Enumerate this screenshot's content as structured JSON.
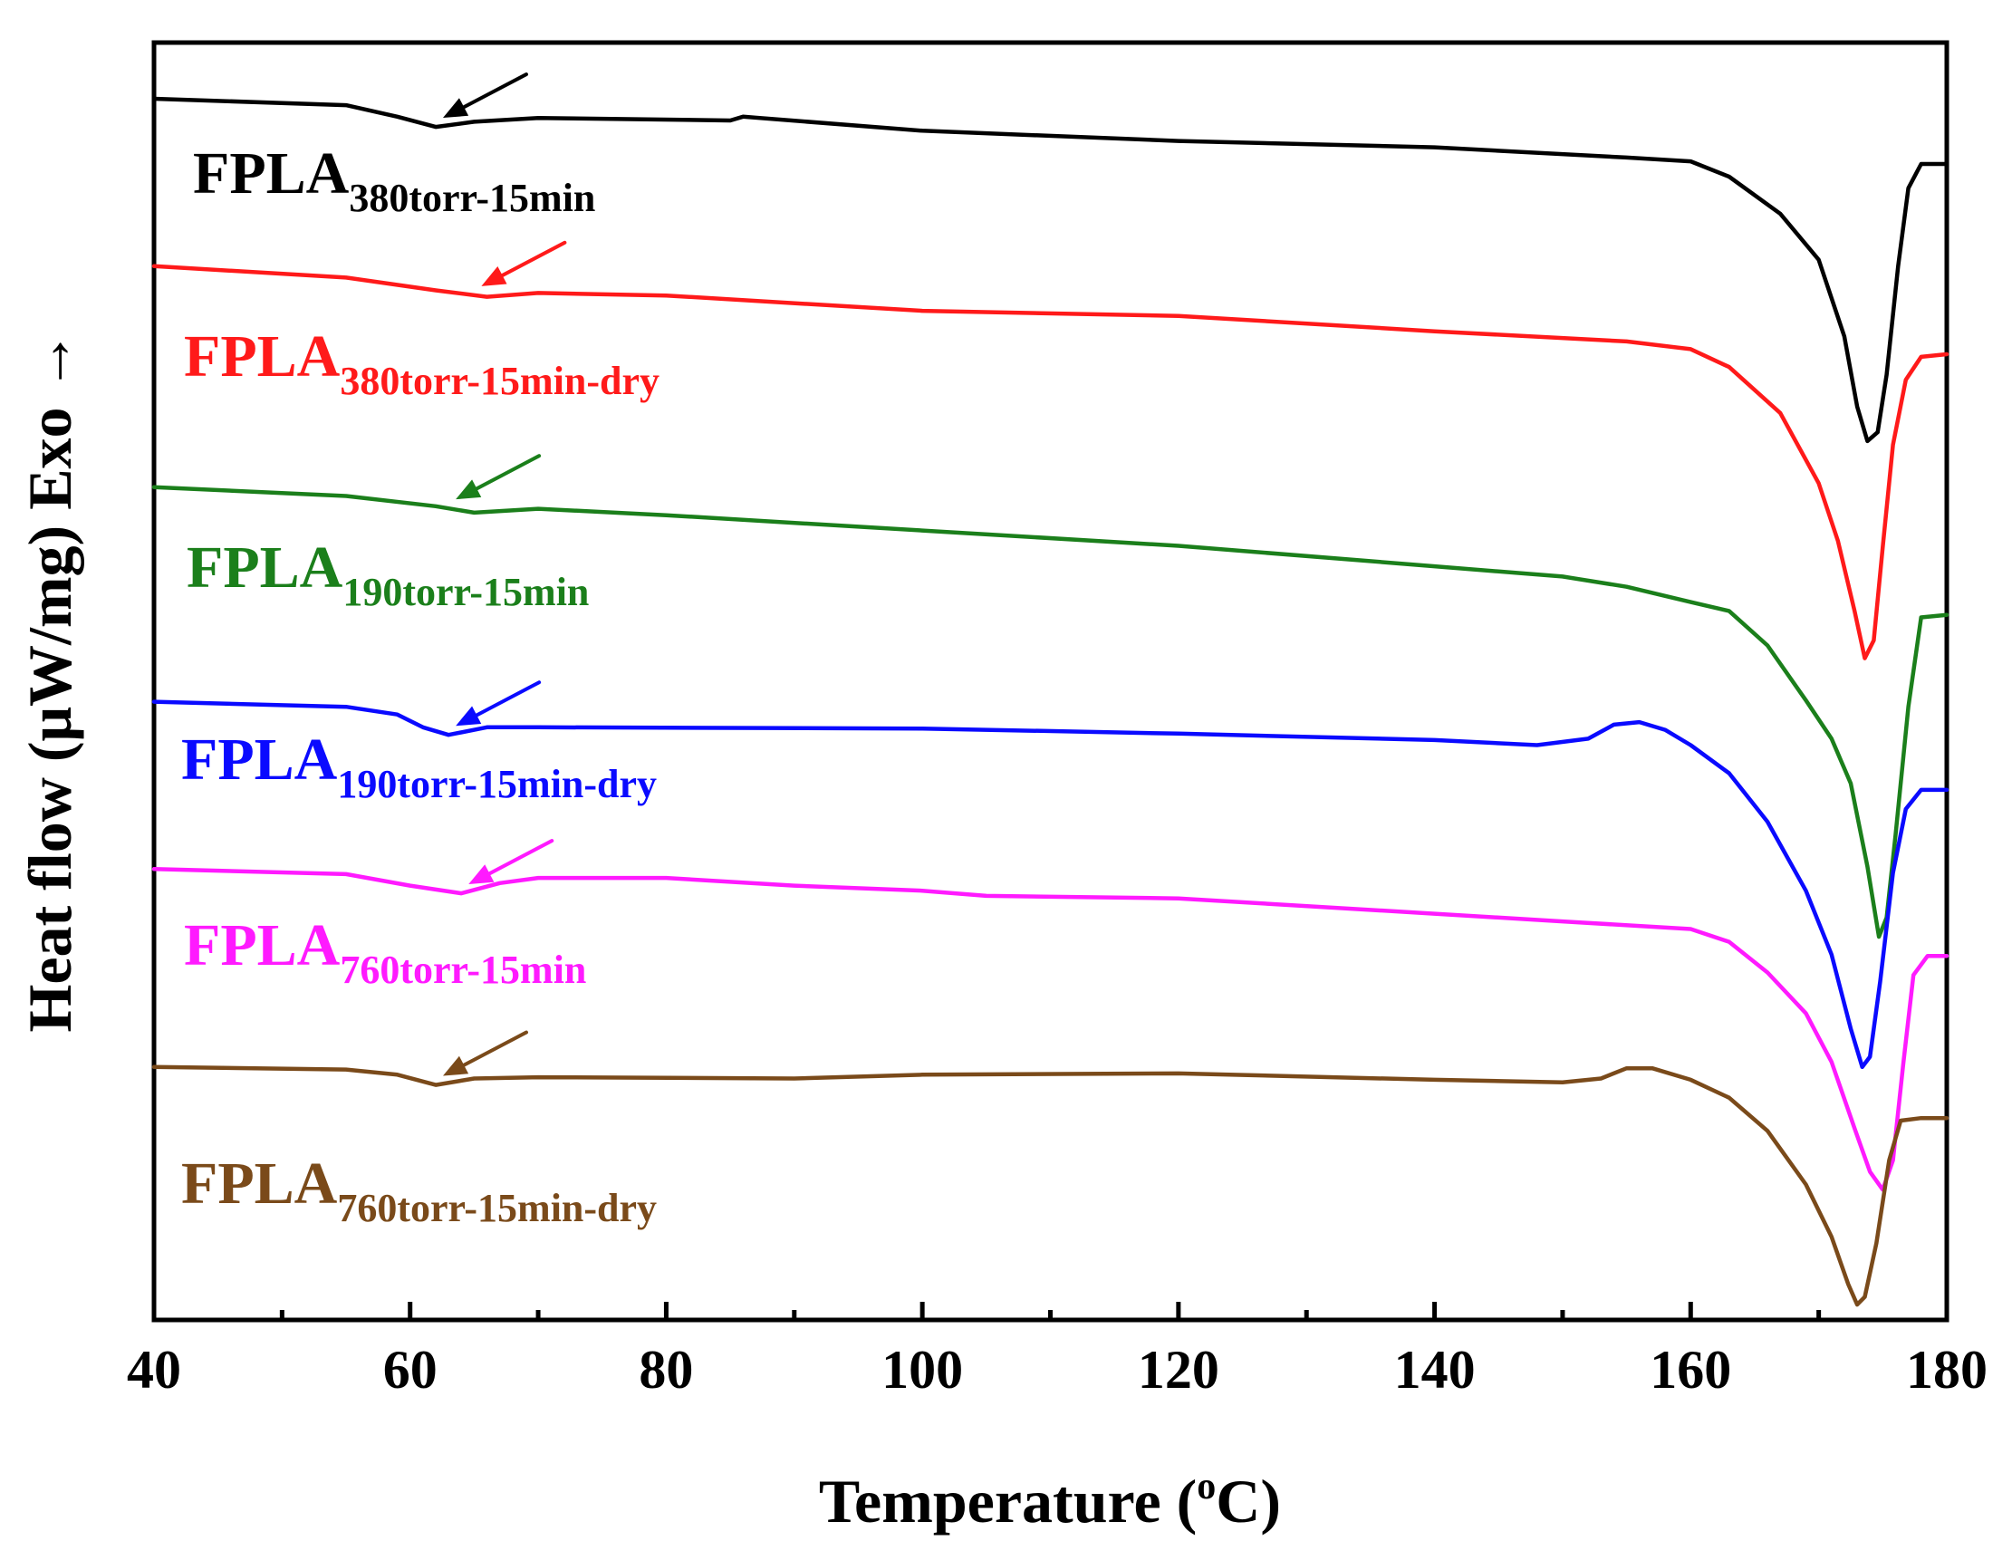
{
  "chart_data": {
    "type": "line",
    "title": "",
    "xlabel": "Temperature (",
    "xlabel_sup": "o",
    "xlabel_end": "C)",
    "ylabel": "Heat flow (μW/mg) Exo →",
    "xlim": [
      40,
      180
    ],
    "xticks": [
      "40",
      "60",
      "80",
      "100",
      "120",
      "140",
      "160",
      "180"
    ],
    "y_units": "offset arbitrary units (stacked curves, higher = exo)",
    "ylim": [
      0,
      100
    ],
    "series": [
      {
        "name": "FPLA380torr-15min",
        "label_main": "FPLA",
        "label_sub": "380torr-15min",
        "color": "#000000",
        "tg_arrow_x": 62,
        "points": [
          [
            40,
            95.6
          ],
          [
            55,
            95.1
          ],
          [
            59,
            94.2
          ],
          [
            62,
            93.4
          ],
          [
            65,
            93.8
          ],
          [
            70,
            94.1
          ],
          [
            85,
            93.9
          ],
          [
            86,
            94.2
          ],
          [
            100,
            93.1
          ],
          [
            120,
            92.3
          ],
          [
            140,
            91.8
          ],
          [
            155,
            91.0
          ],
          [
            160,
            90.7
          ],
          [
            163,
            89.5
          ],
          [
            167,
            86.6
          ],
          [
            170,
            83.0
          ],
          [
            172,
            77.0
          ],
          [
            173,
            71.5
          ],
          [
            173.8,
            68.8
          ],
          [
            174.6,
            69.5
          ],
          [
            175.3,
            74.0
          ],
          [
            176.2,
            82.5
          ],
          [
            177,
            88.6
          ],
          [
            178,
            90.5
          ],
          [
            180,
            90.5
          ]
        ]
      },
      {
        "name": "FPLA380torr-15min-dry",
        "label_main": "FPLA",
        "label_sub": "380torr-15min-dry",
        "color": "#ff1a1a",
        "tg_arrow_x": 65,
        "points": [
          [
            40,
            82.5
          ],
          [
            55,
            81.6
          ],
          [
            62,
            80.6
          ],
          [
            66,
            80.1
          ],
          [
            70,
            80.4
          ],
          [
            80,
            80.2
          ],
          [
            100,
            79.0
          ],
          [
            120,
            78.6
          ],
          [
            140,
            77.4
          ],
          [
            155,
            76.6
          ],
          [
            160,
            76.0
          ],
          [
            163,
            74.6
          ],
          [
            167,
            71.0
          ],
          [
            170,
            65.5
          ],
          [
            171.5,
            61.0
          ],
          [
            172.8,
            55.5
          ],
          [
            173.6,
            51.8
          ],
          [
            174.3,
            53.2
          ],
          [
            175,
            60.5
          ],
          [
            175.8,
            68.5
          ],
          [
            176.8,
            73.6
          ],
          [
            178,
            75.4
          ],
          [
            180,
            75.6
          ]
        ]
      },
      {
        "name": "FPLA190torr-15min",
        "label_main": "FPLA",
        "label_sub": "190torr-15min",
        "color": "#1b7f1b",
        "tg_arrow_x": 63,
        "points": [
          [
            40,
            65.2
          ],
          [
            55,
            64.5
          ],
          [
            62,
            63.7
          ],
          [
            65,
            63.2
          ],
          [
            70,
            63.5
          ],
          [
            80,
            63.0
          ],
          [
            100,
            61.8
          ],
          [
            120,
            60.6
          ],
          [
            140,
            59.0
          ],
          [
            150,
            58.2
          ],
          [
            155,
            57.4
          ],
          [
            160,
            56.2
          ],
          [
            163,
            55.5
          ],
          [
            166,
            52.8
          ],
          [
            169,
            48.5
          ],
          [
            171,
            45.5
          ],
          [
            172.5,
            42.0
          ],
          [
            173.8,
            35.5
          ],
          [
            174.7,
            30.0
          ],
          [
            175.3,
            31.5
          ],
          [
            176,
            38.0
          ],
          [
            177,
            48.0
          ],
          [
            178,
            55.0
          ],
          [
            180,
            55.2
          ]
        ]
      },
      {
        "name": "FPLA190torr-15min-dry",
        "label_main": "FPLA",
        "label_sub": "190torr-15min-dry",
        "color": "#0a0aff",
        "tg_arrow_x": 63,
        "points": [
          [
            40,
            48.4
          ],
          [
            55,
            48.0
          ],
          [
            59,
            47.4
          ],
          [
            61,
            46.4
          ],
          [
            63,
            45.8
          ],
          [
            66,
            46.4
          ],
          [
            70,
            46.4
          ],
          [
            100,
            46.3
          ],
          [
            120,
            45.9
          ],
          [
            140,
            45.4
          ],
          [
            148,
            45.0
          ],
          [
            152,
            45.5
          ],
          [
            154,
            46.6
          ],
          [
            156,
            46.8
          ],
          [
            158,
            46.2
          ],
          [
            160,
            45.0
          ],
          [
            163,
            42.8
          ],
          [
            166,
            39.0
          ],
          [
            169,
            33.6
          ],
          [
            171,
            28.6
          ],
          [
            172.5,
            22.8
          ],
          [
            173.4,
            19.8
          ],
          [
            174,
            20.6
          ],
          [
            174.8,
            26.5
          ],
          [
            175.8,
            35.0
          ],
          [
            176.8,
            40.0
          ],
          [
            178,
            41.5
          ],
          [
            180,
            41.5
          ]
        ]
      },
      {
        "name": "FPLA760torr-15min",
        "label_main": "FPLA",
        "label_sub": "760torr-15min",
        "color": "#ff1aff",
        "tg_arrow_x": 64,
        "points": [
          [
            40,
            35.3
          ],
          [
            55,
            34.9
          ],
          [
            60,
            34.0
          ],
          [
            64,
            33.4
          ],
          [
            67,
            34.2
          ],
          [
            70,
            34.6
          ],
          [
            80,
            34.6
          ],
          [
            90,
            34.0
          ],
          [
            100,
            33.6
          ],
          [
            105,
            33.2
          ],
          [
            120,
            33.0
          ],
          [
            140,
            31.8
          ],
          [
            150,
            31.2
          ],
          [
            160,
            30.6
          ],
          [
            163,
            29.6
          ],
          [
            166,
            27.2
          ],
          [
            169,
            24.0
          ],
          [
            171,
            20.2
          ],
          [
            172.8,
            15.0
          ],
          [
            174,
            11.6
          ],
          [
            175,
            10.2
          ],
          [
            175.8,
            12.5
          ],
          [
            176.6,
            20.0
          ],
          [
            177.4,
            27.0
          ],
          [
            178.5,
            28.5
          ],
          [
            180,
            28.5
          ]
        ]
      },
      {
        "name": "FPLA760torr-15min-dry",
        "label_main": "FPLA",
        "label_sub": "760torr-15min-dry",
        "color": "#7a4a1a",
        "tg_arrow_x": 62,
        "points": [
          [
            40,
            19.8
          ],
          [
            55,
            19.6
          ],
          [
            59,
            19.2
          ],
          [
            62,
            18.4
          ],
          [
            65,
            18.9
          ],
          [
            70,
            19.0
          ],
          [
            90,
            18.9
          ],
          [
            100,
            19.2
          ],
          [
            120,
            19.3
          ],
          [
            140,
            18.8
          ],
          [
            150,
            18.6
          ],
          [
            153,
            18.9
          ],
          [
            155,
            19.7
          ],
          [
            157,
            19.7
          ],
          [
            160,
            18.8
          ],
          [
            163,
            17.4
          ],
          [
            166,
            14.8
          ],
          [
            169,
            10.6
          ],
          [
            171,
            6.5
          ],
          [
            172.3,
            2.8
          ],
          [
            173,
            1.2
          ],
          [
            173.6,
            1.8
          ],
          [
            174.5,
            6.0
          ],
          [
            175.5,
            12.5
          ],
          [
            176.4,
            15.6
          ],
          [
            178,
            15.8
          ],
          [
            180,
            15.8
          ]
        ]
      }
    ]
  }
}
